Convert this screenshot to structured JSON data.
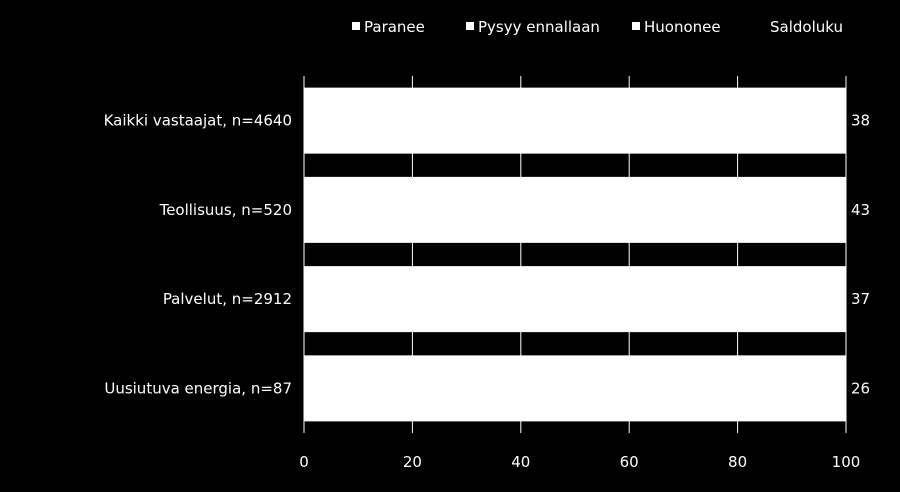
{
  "chart_data": {
    "type": "bar",
    "orientation": "horizontal",
    "stacked": true,
    "categories": [
      "Kaikki vastaajat, n=4640",
      "Teollisuus, n=520",
      "Palvelut, n=2912",
      "Uusiutuva energia, n=87"
    ],
    "series": [
      {
        "name": "Paranee",
        "values": [
          null,
          null,
          null,
          null
        ]
      },
      {
        "name": "Pysyy ennallaan",
        "values": [
          null,
          null,
          null,
          null
        ]
      },
      {
        "name": "Huononee",
        "values": [
          null,
          null,
          null,
          null
        ]
      }
    ],
    "bar_totals": [
      100,
      100,
      100,
      100
    ],
    "saldoluku": {
      "name": "Saldoluku",
      "values": [
        38,
        43,
        37,
        26
      ]
    },
    "xlim": [
      0,
      100
    ],
    "xticks": [
      0,
      20,
      40,
      60,
      80,
      100
    ],
    "grid": true,
    "legend": "top",
    "colors": {
      "background": "#000000",
      "bar": "#ffffff",
      "text": "#ffffff",
      "legend_marker": "#ffffff"
    }
  }
}
